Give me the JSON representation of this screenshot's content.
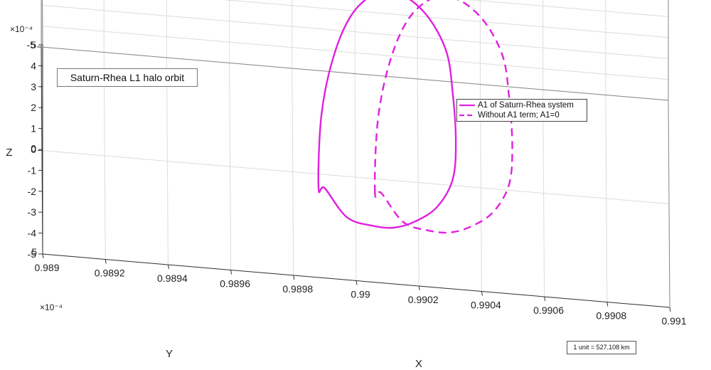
{
  "chart_data": {
    "type": "line",
    "projection": "3d",
    "title": "Saturn-Rhea L1 halo orbit",
    "xlabel": "X",
    "ylabel": "Y",
    "zlabel": "Z",
    "xlim": [
      0.989,
      0.991
    ],
    "ylim": [
      -0.0005,
      0.0005
    ],
    "zlim": [
      -0.0005,
      0.0005
    ],
    "x_ticks": [
      "0.989",
      "0.9892",
      "0.9894",
      "0.9896",
      "0.9898",
      "0.99",
      "0.9902",
      "0.9904",
      "0.9906",
      "0.9908",
      "0.991"
    ],
    "y_ticks": [
      "-5",
      "0",
      "5"
    ],
    "y_exponent": "×10⁻⁴",
    "z_ticks": [
      "-5",
      "-4",
      "-3",
      "-2",
      "-1",
      "0",
      "1",
      "2",
      "3",
      "4",
      "5"
    ],
    "z_exponent": "×10⁻⁴",
    "grid": true,
    "legend_position": "right",
    "annotation": "1 unit = 527,108 km",
    "series": [
      {
        "name": "A1 of Saturn-Rhea system",
        "style": "solid",
        "color": "#e020e0",
        "x": [
          0.98988,
          0.98989,
          0.98993,
          0.98999,
          0.99007,
          0.99015,
          0.99023,
          0.99029,
          0.99031,
          0.99032,
          0.99031,
          0.99026,
          0.99019,
          0.99012,
          0.99005,
          0.98997,
          0.9899
        ],
        "y": [
          0.00045,
          0.00031,
          0.00018,
          7e-05,
          -2e-05,
          -7e-05,
          -0.00011,
          -0.00012,
          -0.0001,
          -1e-05,
          0.0001,
          0.00021,
          0.00031,
          0.00039,
          0.00045,
          0.00049,
          0.00045
        ],
        "z": [
          -0.00012,
          9e-05,
          0.00025,
          0.00035,
          0.00037,
          0.00032,
          0.00019,
          2e-05,
          -0.00015,
          -0.00029,
          -0.00037,
          -0.0004,
          -0.00038,
          -0.00034,
          -0.00028,
          -0.00021,
          -0.00012
        ]
      },
      {
        "name": "Without A1 term; A1=0",
        "style": "dashed",
        "color": "#e020e0",
        "x": [
          0.99006,
          0.99007,
          0.99011,
          0.99017,
          0.99025,
          0.99033,
          0.99041,
          0.99047,
          0.99049,
          0.9905,
          0.99049,
          0.99044,
          0.99037,
          0.9903,
          0.99023,
          0.99015,
          0.99008
        ],
        "y": [
          0.00045,
          0.00031,
          0.00018,
          7e-05,
          -2e-05,
          -7e-05,
          -0.00011,
          -0.00012,
          -0.0001,
          -1e-05,
          0.0001,
          0.00021,
          0.00031,
          0.00039,
          0.00045,
          0.00049,
          0.00045
        ],
        "z": [
          -0.00012,
          9e-05,
          0.00025,
          0.00035,
          0.00037,
          0.00032,
          0.00019,
          2e-05,
          -0.00015,
          -0.00029,
          -0.00037,
          -0.0004,
          -0.00038,
          -0.00034,
          -0.00028,
          -0.00021,
          -0.00012
        ]
      }
    ]
  }
}
